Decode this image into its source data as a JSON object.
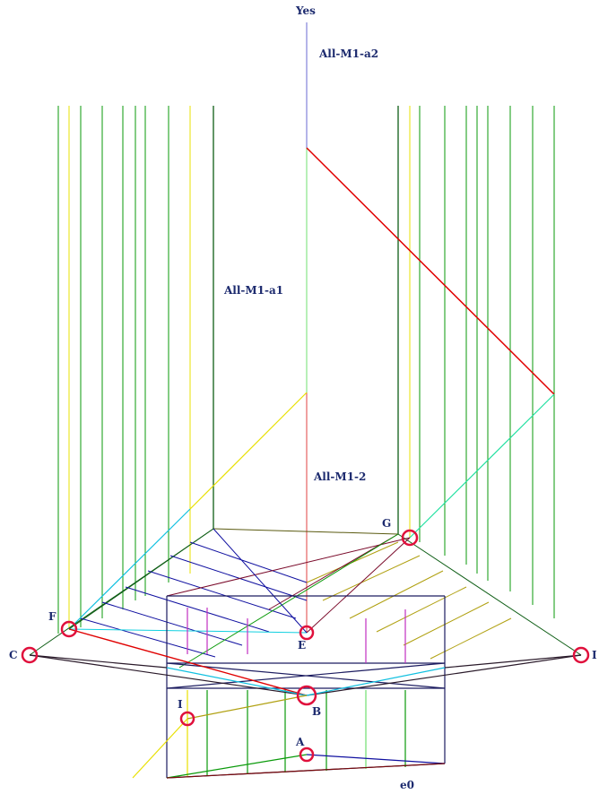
{
  "labels": {
    "yes": "Yes",
    "all_m1_a2": "All-M1-a2",
    "all_m1_a1": "All-M1-a1",
    "all_m1_2": "All-M1-2",
    "e0": "e0"
  },
  "points": {
    "G": "G",
    "F": "F",
    "C": "C",
    "E": "E",
    "B": "B",
    "I_left": "I",
    "I_right": "I",
    "A": "A"
  },
  "colors": {
    "marker": "#e0103c",
    "label": "#1c2a6e",
    "green": "#0a9a0a",
    "dark_green": "#0f5e16",
    "yellow": "#f0e000",
    "olive": "#9a9a10",
    "blue": "#1010a0",
    "red": "#e00000",
    "maroon": "#7a0a2a",
    "cyan": "#10d0e0",
    "magenta": "#c030c0"
  }
}
